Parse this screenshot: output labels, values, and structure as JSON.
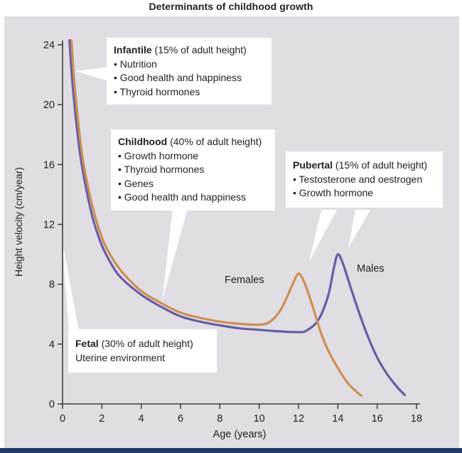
{
  "title": "Determinants of childhood growth",
  "colors": {
    "panel_background": "#e0dde3",
    "bottom_bar": "#1f3a68",
    "axis": "#3c3c3c",
    "text": "#231f20",
    "males_curve": "#675da5",
    "females_curve": "#cd8e52",
    "callout_background": "#ffffff"
  },
  "chart_data": {
    "type": "line",
    "title": "Determinants of childhood growth",
    "xlabel": "Age (years)",
    "ylabel": "Height velocity (cm/year)",
    "xlim": [
      0,
      18
    ],
    "ylim": [
      0,
      24
    ],
    "x_ticks": [
      0,
      2,
      4,
      6,
      8,
      10,
      12,
      14,
      16,
      18
    ],
    "y_ticks": [
      0,
      4,
      8,
      12,
      16,
      20,
      24
    ],
    "grid": false,
    "legend_position": "inline-labels",
    "series": [
      {
        "name": "Males",
        "color": "#675da5",
        "points": [
          [
            0.35,
            24.3
          ],
          [
            0.5,
            21.5
          ],
          [
            0.75,
            18.2
          ],
          [
            1,
            15.8
          ],
          [
            1.5,
            12.6
          ],
          [
            2,
            10.6
          ],
          [
            2.5,
            9.3
          ],
          [
            3,
            8.4
          ],
          [
            4,
            7.3
          ],
          [
            5,
            6.5
          ],
          [
            6,
            5.85
          ],
          [
            7,
            5.5
          ],
          [
            8,
            5.25
          ],
          [
            9,
            5.05
          ],
          [
            10,
            4.95
          ],
          [
            11,
            4.85
          ],
          [
            12,
            4.8
          ],
          [
            12.4,
            4.9
          ],
          [
            13,
            5.6
          ],
          [
            13.5,
            7.2
          ],
          [
            13.8,
            9.1
          ],
          [
            14,
            10
          ],
          [
            14.25,
            9.4
          ],
          [
            14.6,
            8.0
          ],
          [
            15,
            6.4
          ],
          [
            15.5,
            4.6
          ],
          [
            16,
            3.1
          ],
          [
            16.5,
            2.0
          ],
          [
            17,
            1.15
          ],
          [
            17.4,
            0.6
          ]
        ]
      },
      {
        "name": "Females",
        "color": "#cd8e52",
        "points": [
          [
            0.45,
            24.3
          ],
          [
            0.6,
            21.5
          ],
          [
            0.85,
            18.2
          ],
          [
            1.1,
            15.8
          ],
          [
            1.6,
            12.8
          ],
          [
            2.1,
            10.8
          ],
          [
            2.6,
            9.6
          ],
          [
            3.1,
            8.7
          ],
          [
            4,
            7.55
          ],
          [
            5,
            6.75
          ],
          [
            6,
            6.1
          ],
          [
            7,
            5.75
          ],
          [
            8,
            5.5
          ],
          [
            9,
            5.35
          ],
          [
            10,
            5.3
          ],
          [
            10.5,
            5.45
          ],
          [
            11,
            6.1
          ],
          [
            11.4,
            7.1
          ],
          [
            11.7,
            8.0
          ],
          [
            12,
            8.7
          ],
          [
            12.3,
            8.1
          ],
          [
            12.7,
            6.6
          ],
          [
            13.1,
            4.9
          ],
          [
            13.5,
            3.6
          ],
          [
            14,
            2.4
          ],
          [
            14.5,
            1.4
          ],
          [
            15,
            0.75
          ],
          [
            15.2,
            0.55
          ]
        ]
      }
    ],
    "annotations_summary": [
      "Infantile (15% of adult height)",
      "Childhood (40% of adult height)",
      "Pubertal (15% of adult height)",
      "Fetal (30% of adult height)"
    ]
  },
  "annotations": {
    "infantile": {
      "title_bold": "Infantile",
      "title_rest": " (15% of adult height)",
      "lines": [
        "• Nutrition",
        "• Good health and happiness",
        "• Thyroid hormones"
      ]
    },
    "childhood": {
      "title_bold": "Childhood",
      "title_rest": " (40% of adult height)",
      "lines": [
        "• Growth hormone",
        "• Thyroid hormones",
        "• Genes",
        "• Good health and  happiness"
      ]
    },
    "pubertal": {
      "title_bold": "Pubertal",
      "title_rest": " (15% of adult height)",
      "lines": [
        "• Testosterone and oestrogen",
        "• Growth hormone"
      ]
    },
    "fetal": {
      "title_bold": "Fetal",
      "title_rest": " (30% of adult height)",
      "lines": [
        "Uterine environment"
      ]
    }
  }
}
